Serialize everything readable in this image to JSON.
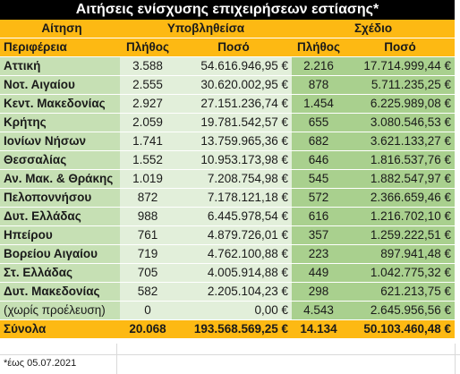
{
  "title": "Αιτήσεις ενίσχυσης επιχειρήσεων εστίασης*",
  "header": {
    "request": "Αίτηση",
    "submitted": "Υποβληθείσα",
    "plan": "Σχέδιο",
    "region": "Περιφέρεια",
    "count": "Πλήθος",
    "amount": "Ποσό"
  },
  "rows": [
    {
      "region": "Αττική",
      "sub_count": "3.588",
      "sub_amount": "54.616.946,95 €",
      "plan_count": "2.216",
      "plan_amount": "17.714.999,44 €"
    },
    {
      "region": "Νοτ. Αιγαίου",
      "sub_count": "2.555",
      "sub_amount": "30.620.002,95 €",
      "plan_count": "878",
      "plan_amount": "5.711.235,25 €"
    },
    {
      "region": "Κεντ. Μακεδονίας",
      "sub_count": "2.927",
      "sub_amount": "27.151.236,74 €",
      "plan_count": "1.454",
      "plan_amount": "6.225.989,08 €"
    },
    {
      "region": "Κρήτης",
      "sub_count": "2.059",
      "sub_amount": "19.781.542,57 €",
      "plan_count": "655",
      "plan_amount": "3.080.546,53 €"
    },
    {
      "region": "Ιονίων Νήσων",
      "sub_count": "1.741",
      "sub_amount": "13.759.965,36 €",
      "plan_count": "682",
      "plan_amount": "3.621.133,27 €"
    },
    {
      "region": "Θεσσαλίας",
      "sub_count": "1.552",
      "sub_amount": "10.953.173,98 €",
      "plan_count": "646",
      "plan_amount": "1.816.537,76 €"
    },
    {
      "region": "Αν. Μακ. & Θράκης",
      "sub_count": "1.019",
      "sub_amount": "7.208.754,98 €",
      "plan_count": "545",
      "plan_amount": "1.882.547,97 €"
    },
    {
      "region": "Πελοποννήσου",
      "sub_count": "872",
      "sub_amount": "7.178.121,18 €",
      "plan_count": "572",
      "plan_amount": "2.366.659,46 €"
    },
    {
      "region": "Δυτ. Ελλάδας",
      "sub_count": "988",
      "sub_amount": "6.445.978,54 €",
      "plan_count": "616",
      "plan_amount": "1.216.702,10 €"
    },
    {
      "region": "Ηπείρου",
      "sub_count": "761",
      "sub_amount": "4.879.726,01 €",
      "plan_count": "357",
      "plan_amount": "1.259.222,51 €"
    },
    {
      "region": "Βορείου Αιγαίου",
      "sub_count": "719",
      "sub_amount": "4.762.100,88 €",
      "plan_count": "223",
      "plan_amount": "897.941,48 €"
    },
    {
      "region": "Στ. Ελλάδας",
      "sub_count": "705",
      "sub_amount": "4.005.914,88 €",
      "plan_count": "449",
      "plan_amount": "1.042.775,32 €"
    },
    {
      "region": "Δυτ. Μακεδονίας",
      "sub_count": "582",
      "sub_amount": "2.205.104,23 €",
      "plan_count": "298",
      "plan_amount": "621.213,75 €"
    },
    {
      "region": "(χωρίς προέλευση)",
      "sub_count": "0",
      "sub_amount": "0,00 €",
      "plan_count": "4.543",
      "plan_amount": "2.645.956,56 €"
    }
  ],
  "totals": {
    "label": "Σύνολα",
    "sub_count": "20.068",
    "sub_amount": "193.568.569,25 €",
    "plan_count": "14.134",
    "plan_amount": "50.103.460,48 €"
  },
  "footnote": "*έως 05.07.2021",
  "colors": {
    "title_bg": "#000000",
    "header_bg": "#fdb913",
    "region_bg": "#c6e0b4",
    "submitted_bg": "#e2efda",
    "plan_bg": "#a9d08e"
  }
}
